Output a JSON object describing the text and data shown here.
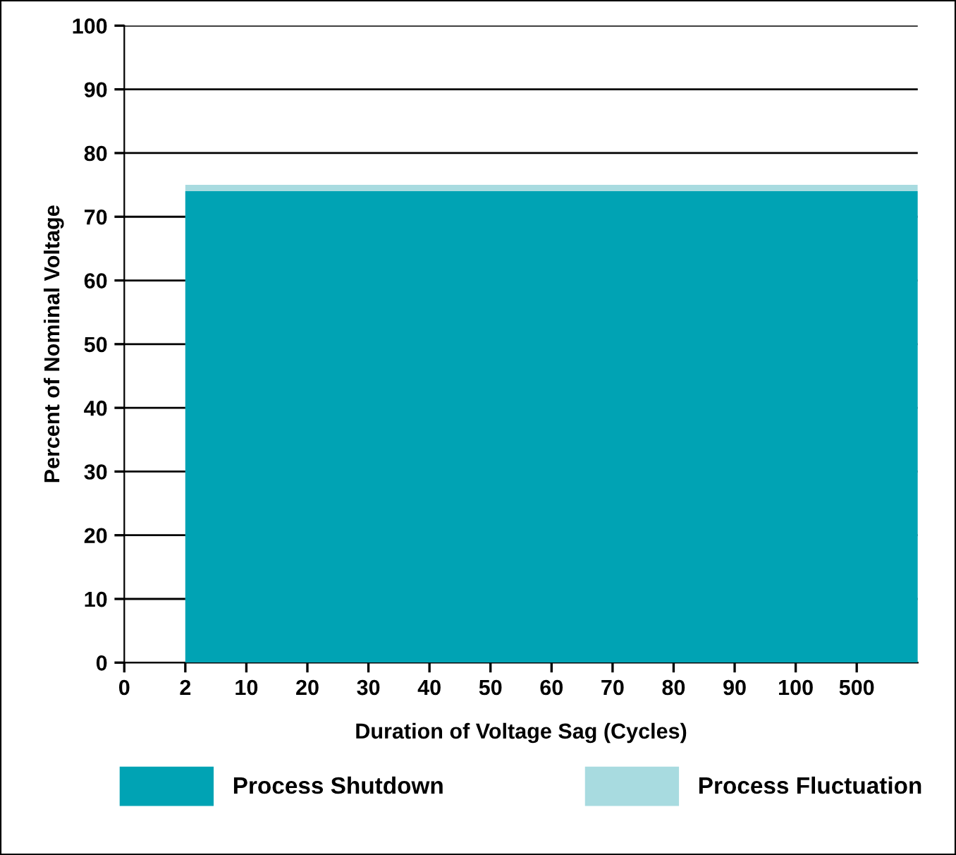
{
  "chart_data": {
    "type": "area",
    "xlabel": "Duration of Voltage Sag (Cycles)",
    "ylabel": "Percent of Nominal Voltage",
    "categories": [
      "0",
      "2",
      "10",
      "20",
      "30",
      "40",
      "50",
      "60",
      "70",
      "80",
      "90",
      "100",
      "500",
      null
    ],
    "series": [
      {
        "name": "Process Fluctuation",
        "color": "#a8dbe0",
        "values": [
          null,
          75,
          75,
          75,
          75,
          75,
          75,
          75,
          75,
          75,
          75,
          75,
          75,
          75
        ]
      },
      {
        "name": "Process Shutdown",
        "color": "#00a3b4",
        "values": [
          null,
          74,
          74,
          74,
          74,
          74,
          74,
          74,
          74,
          74,
          74,
          74,
          74,
          74
        ]
      }
    ],
    "ylim": [
      0,
      100
    ],
    "yticks": [
      0,
      10,
      20,
      30,
      40,
      50,
      60,
      70,
      80,
      90,
      100
    ],
    "grid": "y",
    "legend": "bottom"
  }
}
